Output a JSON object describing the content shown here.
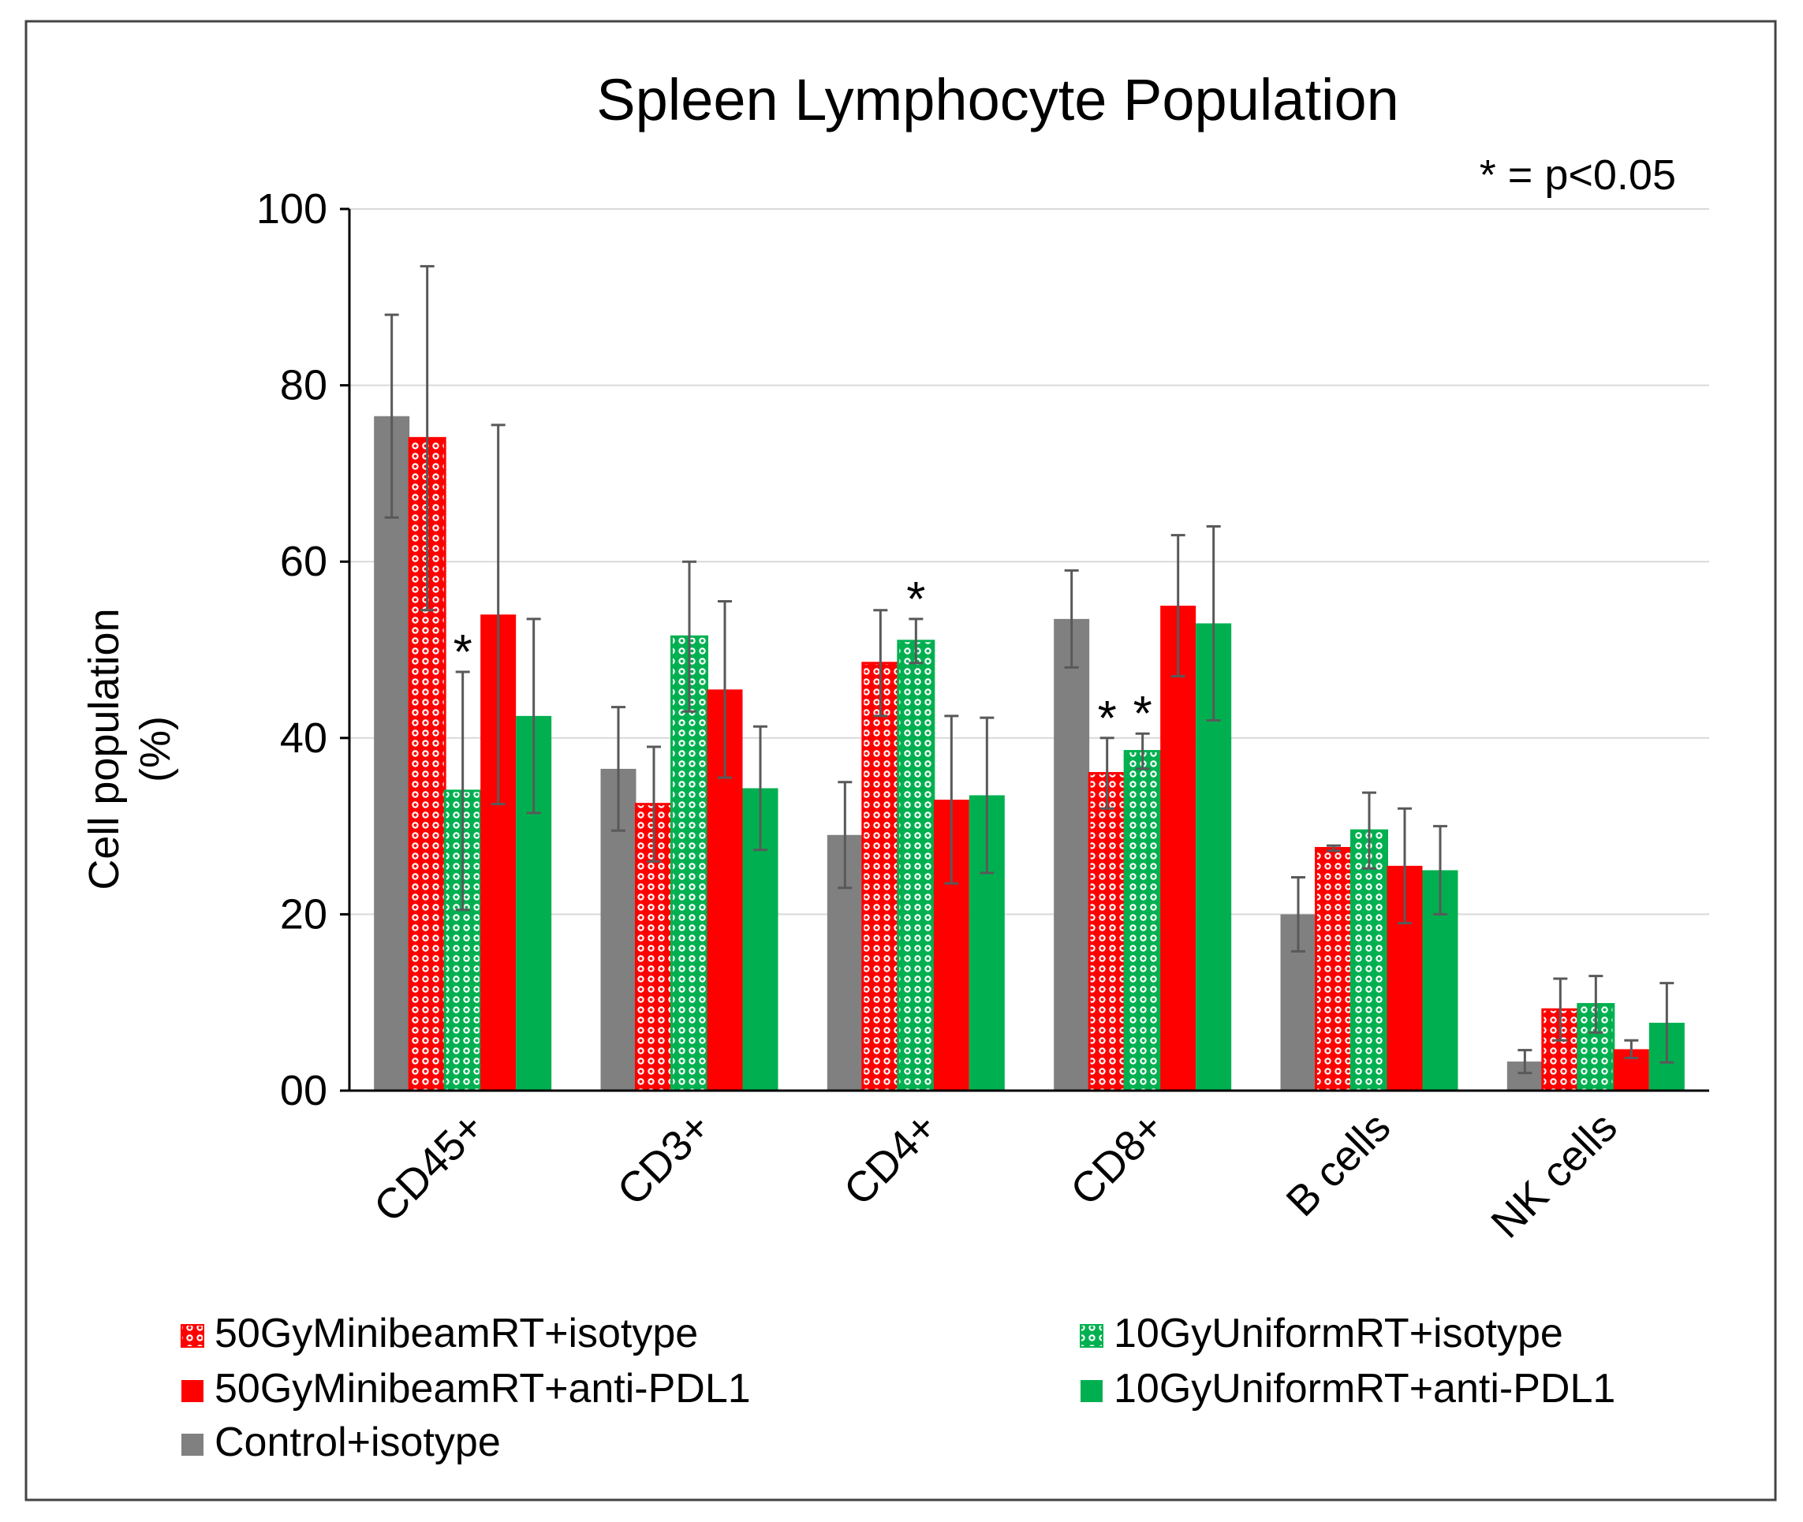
{
  "chart_data": {
    "type": "bar",
    "title": "Spleen Lymphocyte Population",
    "annotation": "* = p<0.05",
    "ylabel_line1": "Cell population",
    "ylabel_line2": "(%)",
    "xlabel": "",
    "ylim": [
      0,
      100
    ],
    "yticks": [
      0,
      20,
      40,
      60,
      80,
      100
    ],
    "ytick_labels": [
      "00",
      "20",
      "40",
      "60",
      "80",
      "100"
    ],
    "grid": true,
    "categories": [
      "CD45+",
      "CD3+",
      "CD4+",
      "CD8+",
      "B cells",
      "NK cells"
    ],
    "series": [
      {
        "name": "Control+isotype",
        "color": "#808080",
        "pattern": "solid",
        "values": [
          76.5,
          36.5,
          29,
          53.5,
          20,
          3.3
        ],
        "errors": [
          11.5,
          7,
          6,
          5.5,
          4.2,
          1.3
        ],
        "significant": [
          false,
          false,
          false,
          false,
          false,
          false
        ]
      },
      {
        "name": "50GyMinibeamRT+isotype",
        "color": "#ff0000",
        "pattern": "dotted",
        "values": [
          74,
          32.5,
          48.5,
          36,
          27.5,
          9.2
        ],
        "errors": [
          19.5,
          6.5,
          6,
          4,
          0.3,
          3.5
        ],
        "significant": [
          false,
          false,
          false,
          true,
          false,
          false
        ]
      },
      {
        "name": "10GyUniformRT+isotype",
        "color": "#00b050",
        "pattern": "dotted",
        "values": [
          34,
          51.5,
          51,
          38.5,
          29.5,
          9.8
        ],
        "errors": [
          13.5,
          8.5,
          2.5,
          2,
          4.3,
          3.2
        ],
        "significant": [
          true,
          false,
          true,
          true,
          false,
          false
        ]
      },
      {
        "name": "50GyMinibeamRT+anti-PDL1",
        "color": "#ff0000",
        "pattern": "solid",
        "values": [
          54,
          45.5,
          33,
          55,
          25.5,
          4.7
        ],
        "errors": [
          21.5,
          10,
          9.5,
          8,
          6.5,
          1
        ],
        "significant": [
          false,
          false,
          false,
          false,
          false,
          false
        ]
      },
      {
        "name": "10GyUniformRT+anti-PDL1",
        "color": "#00b050",
        "pattern": "solid",
        "values": [
          42.5,
          34.3,
          33.5,
          53,
          25,
          7.7
        ],
        "errors": [
          11,
          7,
          8.8,
          11,
          5,
          4.5
        ],
        "significant": [
          false,
          false,
          false,
          false,
          false,
          false
        ]
      }
    ],
    "legend": [
      {
        "label": "50GyMinibeamRT+isotype",
        "series": 1
      },
      {
        "label": "10GyUniformRT+isotype",
        "series": 2
      },
      {
        "label": "50GyMinibeamRT+anti-PDL1",
        "series": 3
      },
      {
        "label": "10GyUniformRT+anti-PDL1",
        "series": 4
      },
      {
        "label": "Control+isotype",
        "series": 0
      }
    ],
    "legend_position": "bottom"
  }
}
